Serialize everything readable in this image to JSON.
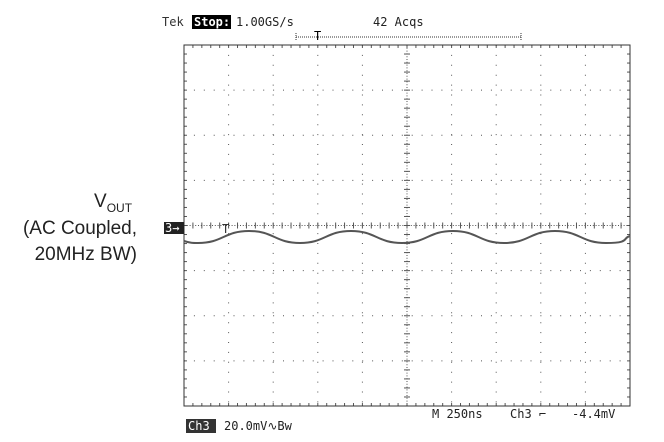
{
  "header": {
    "brand": "Tek",
    "state": "Stop:",
    "sample_rate": "1.00GS/s",
    "acquisitions": "42 Acqs"
  },
  "label": {
    "main": "V",
    "subscript": "OUT",
    "line2": "(AC Coupled,",
    "line3": "20MHz BW)"
  },
  "channel_marker": "3→",
  "footer": {
    "channel": "Ch3",
    "scale": "20.0mV∿Bw",
    "timebase": "M 250ns",
    "trigger_source": "Ch3 ⌐",
    "trigger_level": "-4.4mV"
  }
}
